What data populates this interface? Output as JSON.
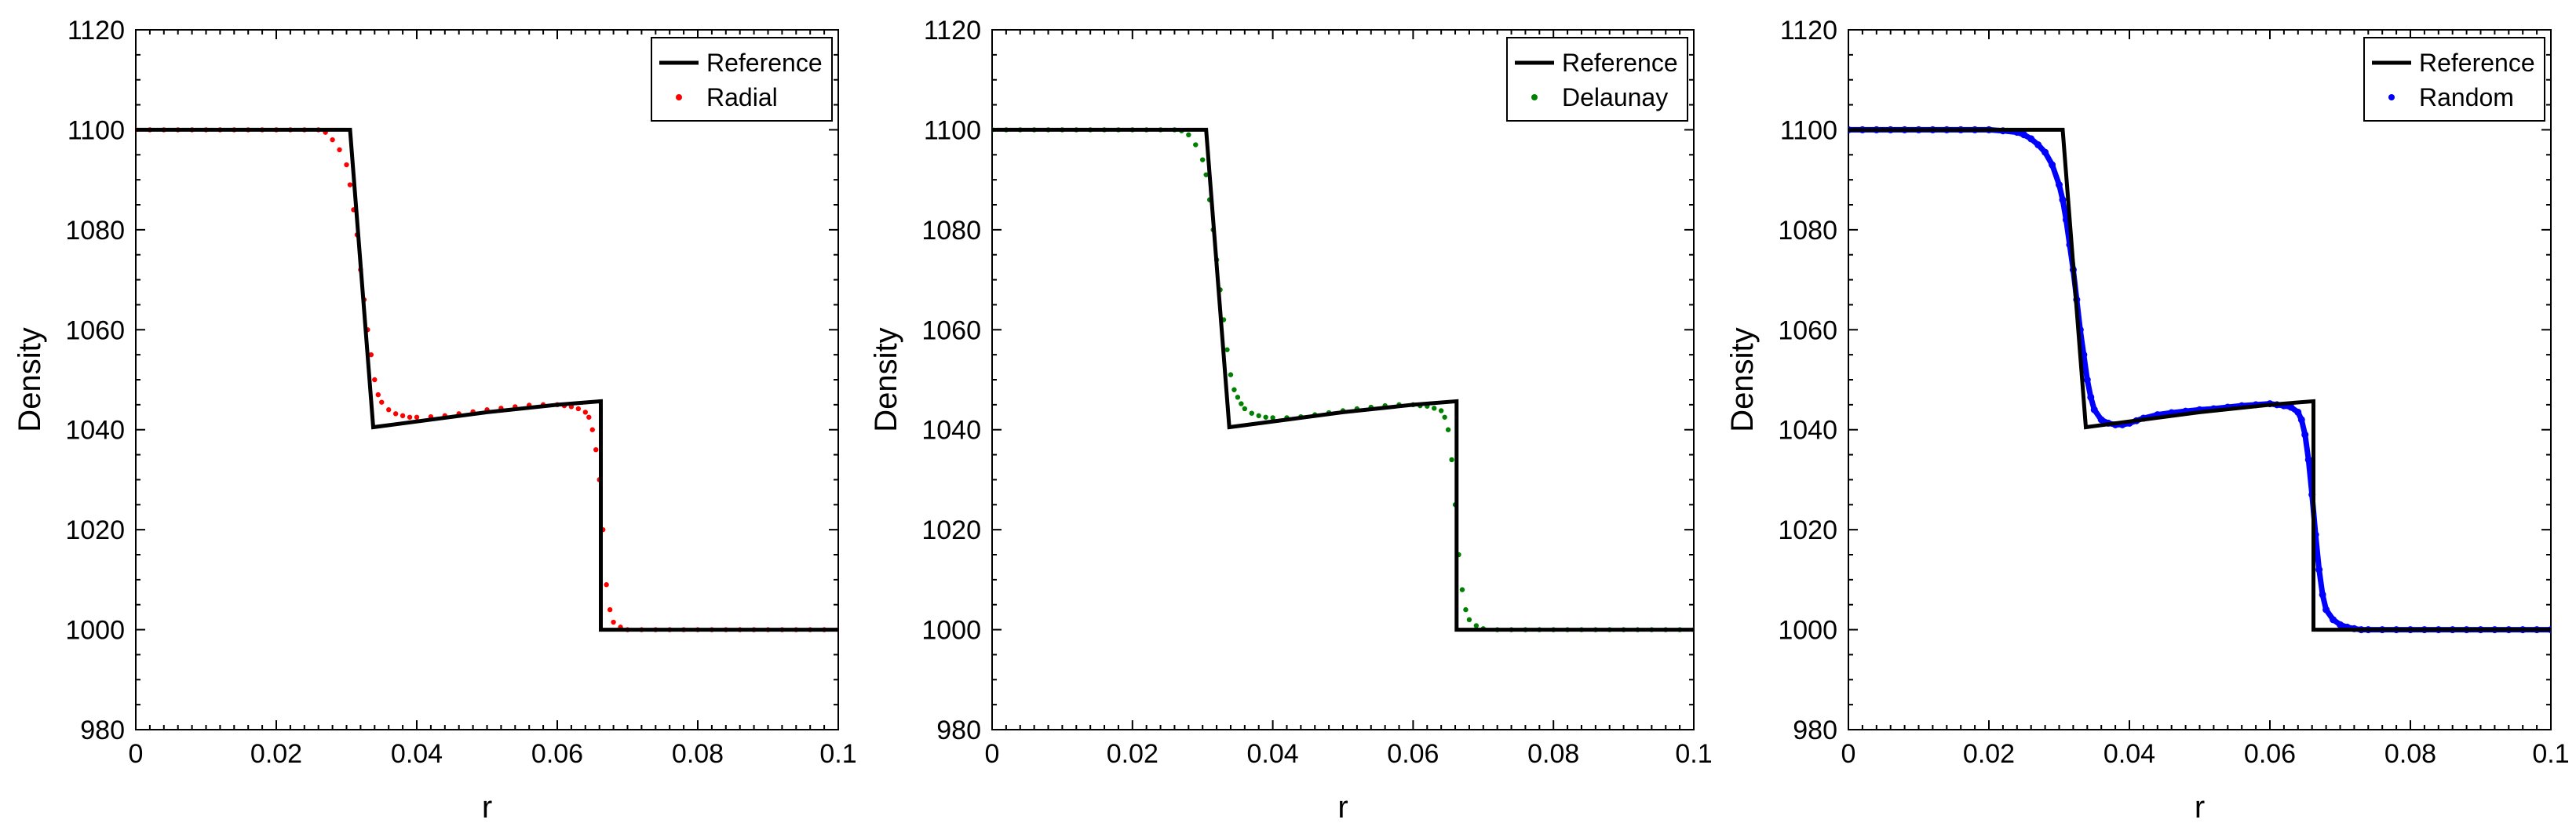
{
  "colors": {
    "reference": "#000000",
    "radial": "#ff0000",
    "delaunay": "#008000",
    "random": "#0000ff"
  },
  "chart_data": [
    {
      "type": "scatter",
      "title": "",
      "xlabel": "r",
      "ylabel": "Density",
      "xlim": [
        0,
        0.1
      ],
      "ylim": [
        980,
        1120
      ],
      "x_ticks": [
        "0",
        "0.02",
        "0.04",
        "0.06",
        "0.08",
        "0.1"
      ],
      "y_ticks": [
        "980",
        "1000",
        "1020",
        "1040",
        "1060",
        "1080",
        "1100",
        "1120"
      ],
      "legend_position": "top-right",
      "series": [
        {
          "name": "Reference",
          "style": "line",
          "color": "#000000",
          "x": [
            0,
            0.0305,
            0.0338,
            0.05,
            0.06,
            0.0662,
            0.0662,
            0.1
          ],
          "y": [
            1100,
            1100,
            1040.5,
            1043.5,
            1045,
            1045.7,
            1000,
            1000
          ]
        },
        {
          "name": "Radial",
          "style": "points",
          "color": "#ff0000",
          "x": [
            0,
            0.002,
            0.004,
            0.006,
            0.008,
            0.01,
            0.012,
            0.014,
            0.016,
            0.018,
            0.02,
            0.022,
            0.024,
            0.026,
            0.027,
            0.028,
            0.029,
            0.03,
            0.0305,
            0.031,
            0.0315,
            0.032,
            0.0325,
            0.033,
            0.0335,
            0.034,
            0.0345,
            0.035,
            0.036,
            0.037,
            0.038,
            0.039,
            0.04,
            0.042,
            0.044,
            0.046,
            0.048,
            0.05,
            0.052,
            0.054,
            0.056,
            0.058,
            0.06,
            0.061,
            0.062,
            0.063,
            0.064,
            0.0645,
            0.065,
            0.0655,
            0.066,
            0.0665,
            0.067,
            0.0675,
            0.068,
            0.069,
            0.07,
            0.072,
            0.074,
            0.076,
            0.078,
            0.08,
            0.082,
            0.084,
            0.086,
            0.088,
            0.09,
            0.092,
            0.094,
            0.096,
            0.098,
            0.1
          ],
          "y": [
            1100,
            1100,
            1100,
            1100,
            1100,
            1100,
            1100,
            1100,
            1100,
            1100,
            1100,
            1100,
            1100,
            1100,
            1099.5,
            1098,
            1096,
            1093,
            1089,
            1084,
            1079,
            1072,
            1066,
            1060,
            1055,
            1050,
            1047,
            1045.5,
            1044,
            1043.2,
            1042.8,
            1042.5,
            1042.5,
            1042.6,
            1042.8,
            1043.2,
            1043.6,
            1044,
            1044.3,
            1044.6,
            1044.9,
            1045,
            1045,
            1044.8,
            1044.6,
            1044.2,
            1043.5,
            1042.5,
            1040,
            1036,
            1030,
            1020,
            1009,
            1004,
            1001.5,
            1000.5,
            1000,
            1000,
            1000,
            1000,
            1000,
            1000,
            1000,
            1000,
            1000,
            1000,
            1000,
            1000,
            1000,
            1000,
            1000,
            1000
          ]
        },
        {
          "name": "Delaunay",
          "style": "points",
          "color": "#008000",
          "x": [
            0,
            0.002,
            0.004,
            0.006,
            0.008,
            0.01,
            0.012,
            0.014,
            0.016,
            0.018,
            0.02,
            0.022,
            0.024,
            0.026,
            0.027,
            0.028,
            0.029,
            0.03,
            0.0305,
            0.031,
            0.0315,
            0.032,
            0.0325,
            0.033,
            0.0335,
            0.034,
            0.0345,
            0.035,
            0.0355,
            0.036,
            0.037,
            0.038,
            0.039,
            0.04,
            0.042,
            0.044,
            0.046,
            0.048,
            0.05,
            0.052,
            0.054,
            0.056,
            0.058,
            0.06,
            0.061,
            0.062,
            0.063,
            0.064,
            0.0645,
            0.065,
            0.0655,
            0.066,
            0.0665,
            0.067,
            0.0675,
            0.068,
            0.069,
            0.07,
            0.072,
            0.074,
            0.076,
            0.078,
            0.08,
            0.082,
            0.084,
            0.086,
            0.088,
            0.09,
            0.092,
            0.094,
            0.096,
            0.098,
            0.1
          ],
          "y": [
            1100,
            1100,
            1100,
            1100,
            1100,
            1100,
            1100,
            1100,
            1100,
            1100,
            1100,
            1100,
            1100,
            1100,
            1099.8,
            1099,
            1097,
            1094,
            1091,
            1086,
            1080,
            1074,
            1068,
            1062,
            1056,
            1051,
            1048,
            1046.5,
            1045.2,
            1044.2,
            1043.3,
            1042.8,
            1042.5,
            1042.4,
            1042.4,
            1042.6,
            1043,
            1043.4,
            1043.8,
            1044.2,
            1044.5,
            1044.8,
            1045,
            1045,
            1044.8,
            1044.7,
            1044.3,
            1043.8,
            1042.5,
            1040,
            1034,
            1025,
            1015,
            1008,
            1004,
            1002,
            1000.8,
            1000.2,
            1000,
            1000,
            1000,
            1000,
            1000,
            1000,
            1000,
            1000,
            1000,
            1000,
            1000,
            1000,
            1000,
            1000,
            1000
          ]
        },
        {
          "name": "Random",
          "style": "points",
          "color": "#0000ff",
          "x": [
            0,
            0.002,
            0.004,
            0.006,
            0.008,
            0.01,
            0.012,
            0.014,
            0.016,
            0.018,
            0.02,
            0.022,
            0.024,
            0.025,
            0.026,
            0.027,
            0.028,
            0.029,
            0.03,
            0.0305,
            0.031,
            0.0315,
            0.032,
            0.0325,
            0.033,
            0.0335,
            0.034,
            0.0345,
            0.035,
            0.036,
            0.037,
            0.038,
            0.039,
            0.04,
            0.041,
            0.042,
            0.044,
            0.046,
            0.048,
            0.05,
            0.052,
            0.054,
            0.056,
            0.058,
            0.06,
            0.061,
            0.062,
            0.063,
            0.064,
            0.0645,
            0.065,
            0.0655,
            0.066,
            0.0665,
            0.067,
            0.0675,
            0.068,
            0.069,
            0.07,
            0.071,
            0.072,
            0.073,
            0.074,
            0.076,
            0.078,
            0.08,
            0.082,
            0.084,
            0.086,
            0.088,
            0.09,
            0.092,
            0.094,
            0.096,
            0.098,
            0.1
          ],
          "y": [
            1100,
            1100,
            1100,
            1100,
            1100,
            1100,
            1100,
            1100,
            1100,
            1100,
            1100,
            1099.8,
            1099.5,
            1099,
            1098.2,
            1097,
            1095.5,
            1093,
            1089,
            1086,
            1082,
            1077,
            1072,
            1066,
            1060,
            1055,
            1050,
            1046.5,
            1044,
            1042,
            1041.3,
            1041,
            1041,
            1041.3,
            1041.8,
            1042.3,
            1043,
            1043.4,
            1043.7,
            1044,
            1044.2,
            1044.5,
            1044.8,
            1045,
            1045.2,
            1045,
            1044.8,
            1044.5,
            1043.5,
            1042,
            1039,
            1034,
            1027,
            1019,
            1012,
            1007,
            1004,
            1002,
            1001,
            1000.5,
            1000.2,
            1000,
            1000,
            1000,
            1000,
            1000,
            1000,
            1000,
            1000,
            1000,
            1000,
            1000,
            1000,
            1000,
            1000,
            1000
          ]
        }
      ]
    },
    {
      "type": "scatter",
      "title": "",
      "xlabel": "r",
      "ylabel": "Density",
      "xlim": [
        0,
        0.1
      ],
      "ylim": [
        980,
        1120
      ],
      "x_ticks": [
        "0",
        "0.02",
        "0.04",
        "0.06",
        "0.08",
        "0.1"
      ],
      "y_ticks": [
        "980",
        "1000",
        "1020",
        "1040",
        "1060",
        "1080",
        "1100",
        "1120"
      ],
      "legend_position": "top-right",
      "series_ref": [
        "Reference",
        "Delaunay"
      ]
    },
    {
      "type": "scatter",
      "title": "",
      "xlabel": "r",
      "ylabel": "Density",
      "xlim": [
        0,
        0.1
      ],
      "ylim": [
        980,
        1120
      ],
      "x_ticks": [
        "0",
        "0.02",
        "0.04",
        "0.06",
        "0.08",
        "0.1"
      ],
      "y_ticks": [
        "980",
        "1000",
        "1020",
        "1040",
        "1060",
        "1080",
        "1100",
        "1120"
      ],
      "legend_position": "top-right",
      "series_ref": [
        "Reference",
        "Random"
      ]
    }
  ],
  "panels": [
    {
      "legend": [
        "Reference",
        "Radial"
      ],
      "reference": "Reference",
      "points": "Radial"
    },
    {
      "legend": [
        "Reference",
        "Delaunay"
      ],
      "reference": "Reference",
      "points": "Delaunay"
    },
    {
      "legend": [
        "Reference",
        "Random"
      ],
      "reference": "Reference",
      "points": "Random"
    }
  ]
}
